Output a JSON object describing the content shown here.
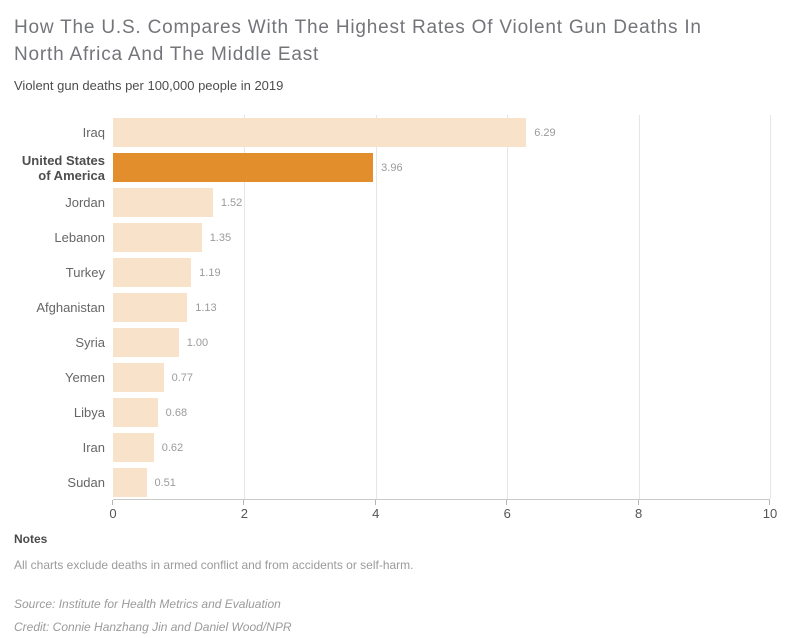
{
  "header": {
    "title": "How The U.S. Compares With The Highest Rates Of Violent Gun Deaths In North Africa And The Middle East",
    "subtitle": "Violent gun deaths per 100,000 people in 2019"
  },
  "chart_data": {
    "type": "bar",
    "orientation": "horizontal",
    "title": "How The U.S. Compares With The Highest Rates Of Violent Gun Deaths In North Africa And The Middle East",
    "subtitle": "Violent gun deaths per 100,000 people in 2019",
    "xlabel": "",
    "ylabel": "",
    "categories": [
      "Iraq",
      "United States of America",
      "Jordan",
      "Lebanon",
      "Turkey",
      "Afghanistan",
      "Syria",
      "Yemen",
      "Libya",
      "Iran",
      "Sudan"
    ],
    "values": [
      6.29,
      3.96,
      1.52,
      1.35,
      1.19,
      1.13,
      1.0,
      0.77,
      0.68,
      0.62,
      0.51
    ],
    "value_labels": [
      "6.29",
      "3.96",
      "1.52",
      "1.35",
      "1.19",
      "1.13",
      "1.00",
      "0.77",
      "0.68",
      "0.62",
      "0.51"
    ],
    "highlight_index": 1,
    "highlighted_category": "United States of America",
    "xlim": [
      0,
      10
    ],
    "xticks": [
      0,
      2,
      4,
      6,
      8,
      10
    ],
    "grid": true,
    "legend": false,
    "colors": {
      "bar": "#f9e2ca",
      "highlight": "#e28e2c",
      "gridline": "#e6e6e6",
      "axis_line": "#c9c9c9"
    }
  },
  "footer": {
    "notes_heading": "Notes",
    "notes_text": "All charts exclude deaths in armed conflict and from accidents or self-harm.",
    "source": "Source: Institute for Health Metrics and Evaluation",
    "credit": "Credit: Connie Hanzhang Jin and Daniel Wood/NPR"
  }
}
